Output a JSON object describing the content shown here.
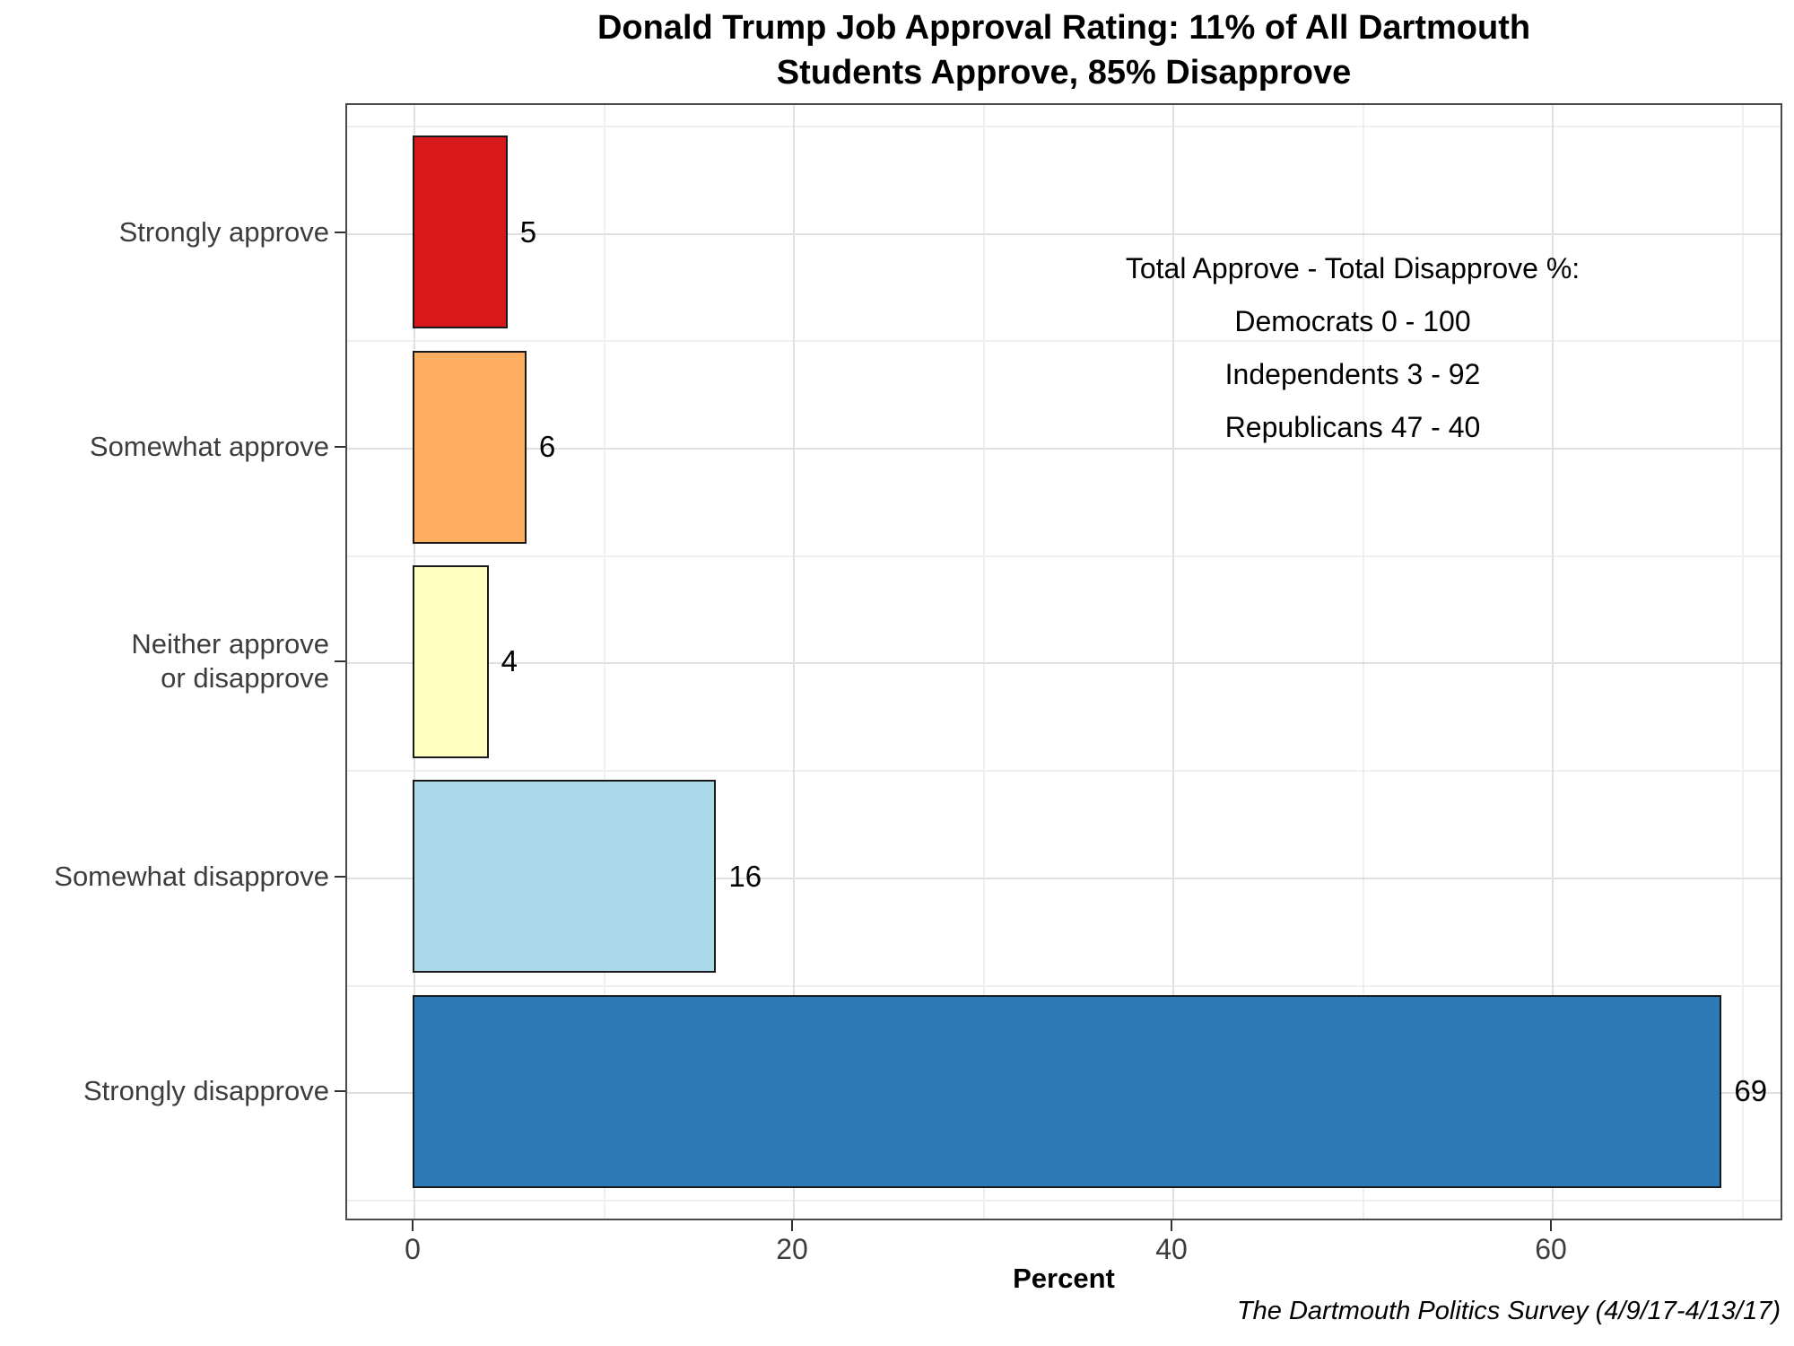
{
  "title": {
    "line1": "Donald Trump Job Approval Rating: 11% of All Dartmouth",
    "line2": "Students Approve, 85% Disapprove"
  },
  "chart_data": {
    "type": "bar",
    "orientation": "horizontal",
    "title": "Donald Trump Job Approval Rating: 11% of All Dartmouth Students Approve, 85% Disapprove",
    "categories": [
      "Strongly approve",
      "Somewhat approve",
      "Neither approve\nor disapprove",
      "Somewhat disapprove",
      "Strongly disapprove"
    ],
    "values": [
      5,
      6,
      4,
      16,
      69
    ],
    "value_labels": [
      "5",
      "6",
      "4",
      "16",
      "69"
    ],
    "bar_colors": [
      "#D7191C",
      "#FDAE61",
      "#FFFFBF",
      "#ABD9E9",
      "#2C7BB6"
    ],
    "bar_outline_color": "#1a1a1a",
    "xlabel": "Percent",
    "ylabel": "",
    "x_major_ticks": [
      0,
      20,
      40,
      60
    ],
    "x_minor_ticks": [
      10,
      30,
      50,
      70
    ],
    "xlim": [
      -3.5,
      72.2
    ],
    "grid": "major and minor, light gray, on white panel with dark border",
    "legend": "none"
  },
  "annotation": {
    "heading": "Total Approve - Total Disapprove %:",
    "lines": [
      "Democrats 0 - 100",
      "Independents 3 - 92",
      "Republicans 47 - 40"
    ]
  },
  "caption": "The Dartmouth Politics Survey (4/9/17-4/13/17)"
}
